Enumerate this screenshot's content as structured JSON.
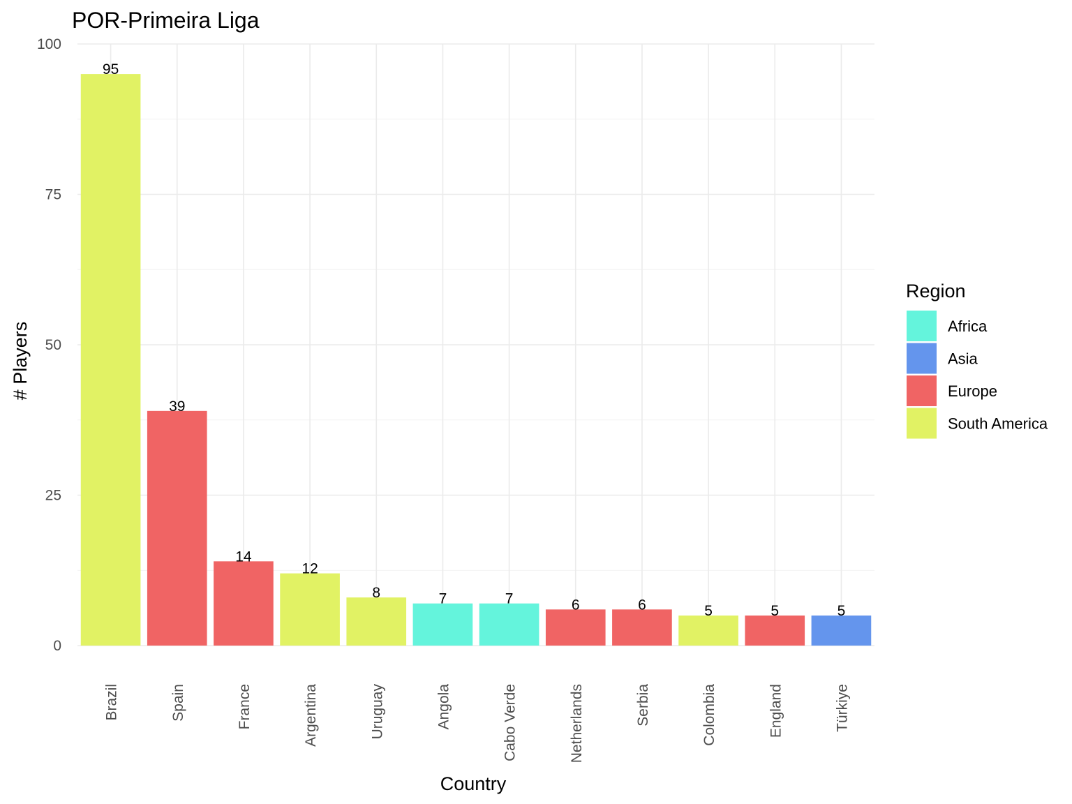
{
  "chart_data": {
    "type": "bar",
    "title": "POR-Primeira Liga",
    "xlabel": "Country",
    "ylabel": "# Players",
    "ylim": [
      0,
      100
    ],
    "yticks": [
      0,
      25,
      50,
      75,
      100
    ],
    "grid": true,
    "categories": [
      "Brazil",
      "Spain",
      "France",
      "Argentina",
      "Uruguay",
      "Angola",
      "Cabo Verde",
      "Netherlands",
      "Serbia",
      "Colombia",
      "England",
      "Türkiye"
    ],
    "values": [
      95,
      39,
      14,
      12,
      8,
      7,
      7,
      6,
      6,
      5,
      5,
      5
    ],
    "regions": [
      "South America",
      "Europe",
      "Europe",
      "South America",
      "South America",
      "Africa",
      "Africa",
      "Europe",
      "Europe",
      "South America",
      "Europe",
      "Asia"
    ],
    "legend": {
      "title": "Region",
      "position": "right",
      "entries": [
        {
          "name": "Africa",
          "color": "#64f4dc"
        },
        {
          "name": "Asia",
          "color": "#6495ed"
        },
        {
          "name": "Europe",
          "color": "#f06464"
        },
        {
          "name": "South America",
          "color": "#e1f264"
        }
      ]
    }
  }
}
